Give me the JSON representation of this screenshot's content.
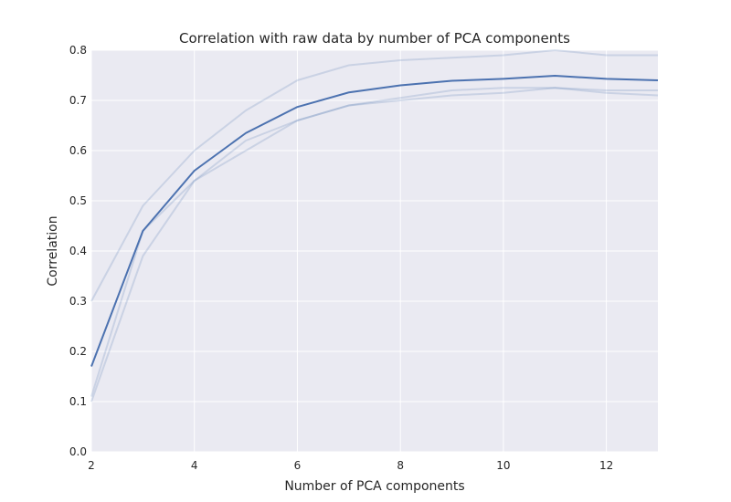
{
  "chart_data": {
    "type": "line",
    "title": "Correlation with raw data by number of PCA components",
    "xlabel": "Number of PCA components",
    "ylabel": "Correlation",
    "xlim": [
      2,
      13
    ],
    "ylim": [
      0.0,
      0.8
    ],
    "x_ticks": [
      "2",
      "4",
      "6",
      "8",
      "10",
      "12"
    ],
    "y_ticks": [
      "0.0",
      "0.1",
      "0.2",
      "0.3",
      "0.4",
      "0.5",
      "0.6",
      "0.7",
      "0.8"
    ],
    "grid": true,
    "x": [
      2,
      3,
      4,
      5,
      6,
      7,
      8,
      9,
      10,
      11,
      12,
      13
    ],
    "series": [
      {
        "values": [
          0.3,
          0.49,
          0.6,
          0.68,
          0.74,
          0.77,
          0.78,
          0.785,
          0.79,
          0.8,
          0.79,
          0.79
        ],
        "color": "#4c72b0",
        "opacity": 0.2
      },
      {
        "values": [
          0.11,
          0.44,
          0.54,
          0.62,
          0.66,
          0.69,
          0.7,
          0.71,
          0.715,
          0.725,
          0.715,
          0.71
        ],
        "color": "#4c72b0",
        "opacity": 0.2
      },
      {
        "values": [
          0.1,
          0.39,
          0.54,
          0.6,
          0.66,
          0.69,
          0.705,
          0.72,
          0.725,
          0.725,
          0.72,
          0.72
        ],
        "color": "#4c72b0",
        "opacity": 0.2
      },
      {
        "values": [
          0.17,
          0.44,
          0.56,
          0.635,
          0.687,
          0.716,
          0.73,
          0.739,
          0.743,
          0.749,
          0.743,
          0.74
        ],
        "color": "#4c72b0",
        "opacity": 1.0
      }
    ],
    "colors": {
      "plot_background": "#eaeaf2",
      "grid": "#ffffff",
      "text": "#262626"
    }
  }
}
